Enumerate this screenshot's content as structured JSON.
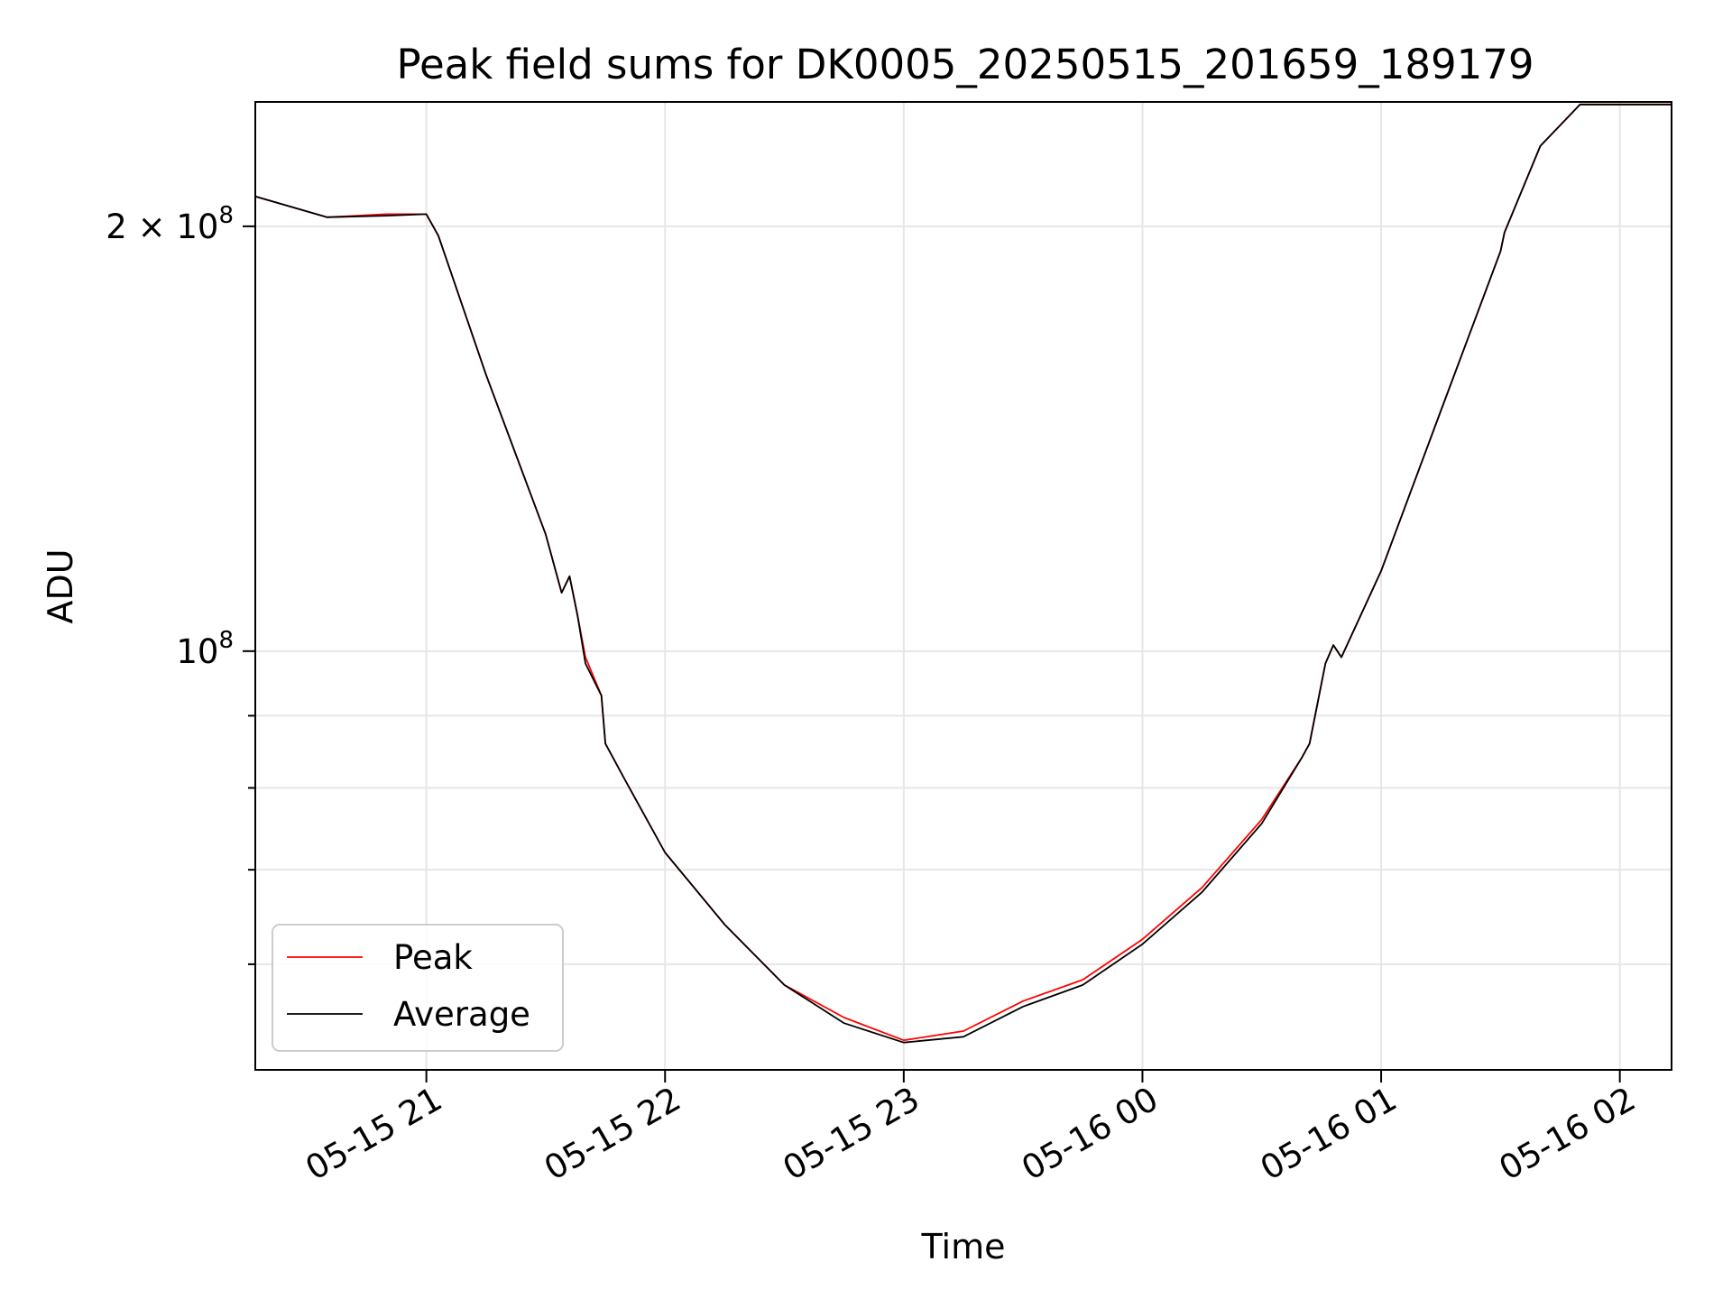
{
  "chart_data": {
    "type": "line",
    "title": "Peak field sums for DK0005_20250515_201659_189179",
    "xlabel": "Time",
    "ylabel": "ADU",
    "y_scale": "log",
    "ylim": [
      50500000,
      245000000
    ],
    "xlim": [
      "2025-05-15 20:17",
      "2025-05-16 02:13"
    ],
    "x_ticks": [
      {
        "t": "2025-05-15 21:00",
        "label": "05-15 21"
      },
      {
        "t": "2025-05-15 22:00",
        "label": "05-15 22"
      },
      {
        "t": "2025-05-15 23:00",
        "label": "05-15 23"
      },
      {
        "t": "2025-05-16 00:00",
        "label": "05-16 00"
      },
      {
        "t": "2025-05-16 01:00",
        "label": "05-16 01"
      },
      {
        "t": "2025-05-16 02:00",
        "label": "05-16 02"
      }
    ],
    "y_major_ticks": [
      {
        "value": 100000000,
        "base": "10",
        "exp": "8"
      },
      {
        "value": 200000000,
        "mant": "2 × ",
        "base": "10",
        "exp": "8"
      }
    ],
    "y_minor_ticks": [
      60000000,
      70000000,
      80000000,
      90000000
    ],
    "grid": true,
    "legend_position": "lower-left",
    "series": [
      {
        "name": "Peak",
        "color": "#ff0000",
        "x": [
          "2025-05-15 20:17",
          "2025-05-15 20:35",
          "2025-05-15 20:50",
          "2025-05-15 21:00",
          "2025-05-15 21:03",
          "2025-05-15 21:15",
          "2025-05-15 21:30",
          "2025-05-15 21:34",
          "2025-05-15 21:36",
          "2025-05-15 21:38",
          "2025-05-15 21:40",
          "2025-05-15 21:44",
          "2025-05-15 21:45",
          "2025-05-15 21:50",
          "2025-05-15 22:00",
          "2025-05-15 22:15",
          "2025-05-15 22:30",
          "2025-05-15 22:45",
          "2025-05-15 23:00",
          "2025-05-15 23:15",
          "2025-05-15 23:30",
          "2025-05-15 23:45",
          "2025-05-16 00:00",
          "2025-05-16 00:15",
          "2025-05-16 00:30",
          "2025-05-16 00:40",
          "2025-05-16 00:42",
          "2025-05-16 00:46",
          "2025-05-16 00:48",
          "2025-05-16 00:50",
          "2025-05-16 01:00",
          "2025-05-16 01:15",
          "2025-05-16 01:30",
          "2025-05-16 01:31",
          "2025-05-16 01:40",
          "2025-05-16 01:50",
          "2025-05-16 02:13"
        ],
        "y": [
          210000000,
          203000000,
          204000000,
          204000000,
          197000000,
          157000000,
          121000000,
          110000000,
          113000000,
          106000000,
          99000000,
          93000000,
          86000000,
          81000000,
          72000000,
          64000000,
          58000000,
          55000000,
          53000000,
          53800000,
          56500000,
          58500000,
          62500000,
          68000000,
          76000000,
          84000000,
          86000000,
          98000000,
          101000000,
          99000000,
          114000000,
          148000000,
          192000000,
          198000000,
          228000000,
          244000000,
          244000000
        ]
      },
      {
        "name": "Average",
        "color": "#000000",
        "x": [
          "2025-05-15 20:17",
          "2025-05-15 20:35",
          "2025-05-15 20:50",
          "2025-05-15 21:00",
          "2025-05-15 21:03",
          "2025-05-15 21:15",
          "2025-05-15 21:30",
          "2025-05-15 21:34",
          "2025-05-15 21:36",
          "2025-05-15 21:38",
          "2025-05-15 21:40",
          "2025-05-15 21:44",
          "2025-05-15 21:45",
          "2025-05-15 21:50",
          "2025-05-15 22:00",
          "2025-05-15 22:15",
          "2025-05-15 22:30",
          "2025-05-15 22:45",
          "2025-05-15 23:00",
          "2025-05-15 23:15",
          "2025-05-15 23:30",
          "2025-05-15 23:45",
          "2025-05-16 00:00",
          "2025-05-16 00:15",
          "2025-05-16 00:30",
          "2025-05-16 00:40",
          "2025-05-16 00:42",
          "2025-05-16 00:46",
          "2025-05-16 00:48",
          "2025-05-16 00:50",
          "2025-05-16 01:00",
          "2025-05-16 01:15",
          "2025-05-16 01:30",
          "2025-05-16 01:31",
          "2025-05-16 01:40",
          "2025-05-16 01:50",
          "2025-05-16 02:13"
        ],
        "y": [
          210000000,
          203000000,
          203500000,
          204000000,
          197000000,
          157000000,
          121000000,
          110000000,
          113000000,
          106000000,
          98000000,
          93000000,
          86000000,
          81000000,
          72000000,
          64000000,
          58000000,
          54500000,
          52800000,
          53300000,
          56000000,
          58000000,
          62000000,
          67500000,
          75500000,
          84000000,
          86000000,
          98000000,
          101000000,
          99000000,
          114000000,
          148000000,
          192000000,
          198000000,
          228000000,
          244000000,
          244000000
        ]
      }
    ]
  }
}
